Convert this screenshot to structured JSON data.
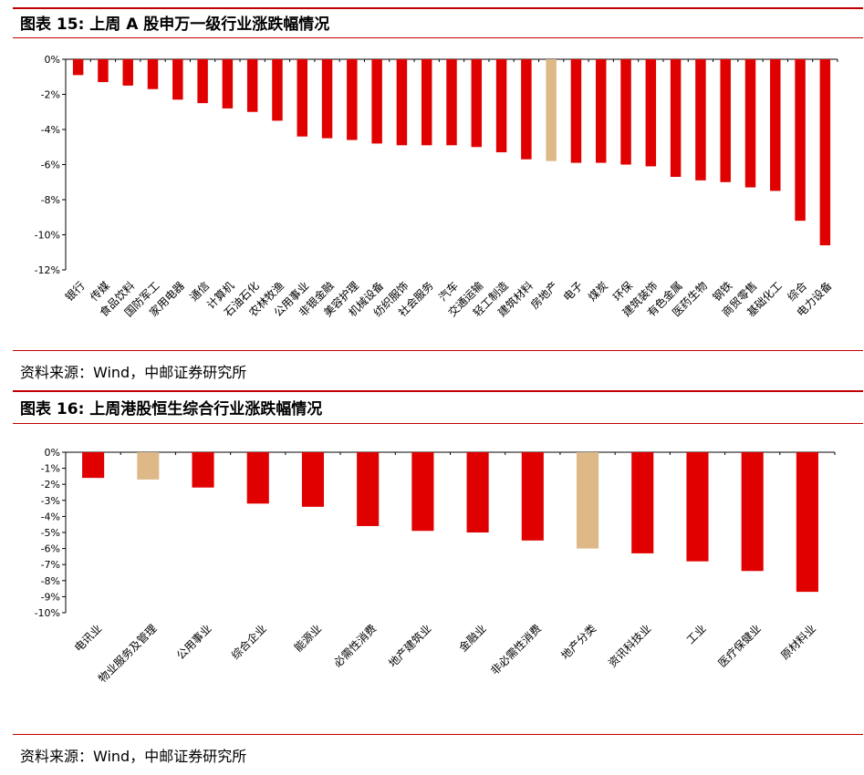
{
  "colors": {
    "rule": "#c00000",
    "bar": "#e00000",
    "highlight": "#deb887",
    "axis": "#000000"
  },
  "figure15": {
    "title": "图表 15: 上周 A 股申万一级行业涨跌幅情况",
    "source": "资料来源：Wind，中邮证券研究所",
    "chart_data": {
      "type": "bar",
      "title": "",
      "xlabel": "",
      "ylabel": "",
      "ylim": [
        -12,
        0
      ],
      "yticks": [
        0,
        -2,
        -4,
        -6,
        -8,
        -10,
        -12
      ],
      "ytick_labels": [
        "0%",
        "-2%",
        "-4%",
        "-6%",
        "-8%",
        "-10%",
        "-12%"
      ],
      "grid": false,
      "highlight": [
        "房地产"
      ],
      "categories": [
        "银行",
        "传媒",
        "食品饮料",
        "国防军工",
        "家用电器",
        "通信",
        "计算机",
        "石油石化",
        "农林牧渔",
        "公用事业",
        "非银金融",
        "美容护理",
        "机械设备",
        "纺织服饰",
        "社会服务",
        "汽车",
        "交通运输",
        "轻工制造",
        "建筑材料",
        "房地产",
        "电子",
        "煤炭",
        "环保",
        "建筑装饰",
        "有色金属",
        "医药生物",
        "钢铁",
        "商贸零售",
        "基础化工",
        "综合",
        "电力设备"
      ],
      "values": [
        -0.9,
        -1.3,
        -1.5,
        -1.7,
        -2.3,
        -2.5,
        -2.8,
        -3.0,
        -3.5,
        -4.4,
        -4.5,
        -4.6,
        -4.8,
        -4.9,
        -4.9,
        -4.9,
        -5.0,
        -5.3,
        -5.7,
        -5.8,
        -5.9,
        -5.9,
        -6.0,
        -6.1,
        -6.7,
        -6.9,
        -7.0,
        -7.3,
        -7.5,
        -9.2,
        -10.6
      ]
    }
  },
  "figure16": {
    "title": "图表 16: 上周港股恒生综合行业涨跌幅情况",
    "source": "资料来源：Wind，中邮证券研究所",
    "chart_data": {
      "type": "bar",
      "title": "",
      "xlabel": "",
      "ylabel": "",
      "ylim": [
        -10,
        0
      ],
      "yticks": [
        0,
        -1,
        -2,
        -3,
        -4,
        -5,
        -6,
        -7,
        -8,
        -9,
        -10
      ],
      "ytick_labels": [
        "0%",
        "-1%",
        "-2%",
        "-3%",
        "-4%",
        "-5%",
        "-6%",
        "-7%",
        "-8%",
        "-9%",
        "-10%"
      ],
      "grid": false,
      "highlight": [
        "物业服务及管理",
        "地产分类"
      ],
      "categories": [
        "电讯业",
        "物业服务及管理",
        "公用事业",
        "综合企业",
        "能源业",
        "必需性消费",
        "地产建筑业",
        "金融业",
        "非必需性消费",
        "地产分类",
        "资讯科技业",
        "工业",
        "医疗保健业",
        "原材料业"
      ],
      "values": [
        -1.6,
        -1.7,
        -2.2,
        -3.2,
        -3.4,
        -4.6,
        -4.9,
        -5.0,
        -5.5,
        -6.0,
        -6.3,
        -6.8,
        -7.4,
        -8.7
      ]
    }
  }
}
